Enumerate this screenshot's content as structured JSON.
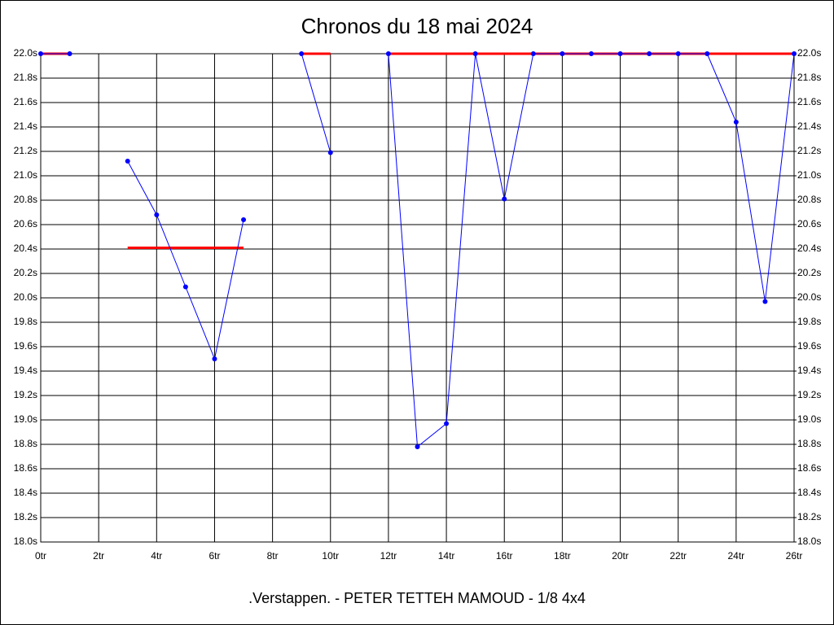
{
  "chart_data": {
    "type": "line",
    "title": "Chronos du 18 mai 2024",
    "subtitle": ".Verstappen. - PETER TETTEH MAMOUD - 1/8 4x4",
    "x": [
      0,
      1,
      2,
      3,
      4,
      5,
      6,
      7,
      8,
      9,
      10,
      11,
      12,
      13,
      14,
      15,
      16,
      17,
      18,
      19,
      20,
      21,
      22,
      23,
      24,
      25,
      26
    ],
    "series": [
      {
        "color": "#ff0000",
        "markers": false,
        "width": 3,
        "values": [
          22.0,
          22.0,
          null,
          20.41,
          20.41,
          20.41,
          20.41,
          20.41,
          null,
          22.0,
          22.0,
          null,
          22.0,
          22.0,
          22.0,
          22.0,
          22.0,
          22.0,
          22.0,
          22.0,
          22.0,
          22.0,
          22.0,
          22.0,
          22.0,
          22.0,
          22.0
        ]
      },
      {
        "color": "#0000ff",
        "markers": true,
        "width": 1,
        "values": [
          22.0,
          22.0,
          null,
          21.12,
          20.68,
          20.09,
          19.5,
          20.64,
          null,
          22.0,
          21.19,
          null,
          22.0,
          18.78,
          18.97,
          22.0,
          20.81,
          22.0,
          22.0,
          22.0,
          22.0,
          22.0,
          22.0,
          22.0,
          21.44,
          19.97,
          22.0
        ]
      }
    ],
    "xlim": [
      0,
      26
    ],
    "xticks": [
      {
        "value": 0,
        "label": "0tr"
      },
      {
        "value": 2,
        "label": "2tr"
      },
      {
        "value": 4,
        "label": "4tr"
      },
      {
        "value": 6,
        "label": "6tr"
      },
      {
        "value": 8,
        "label": "8tr"
      },
      {
        "value": 10,
        "label": "10tr"
      },
      {
        "value": 12,
        "label": "12tr"
      },
      {
        "value": 14,
        "label": "14tr"
      },
      {
        "value": 16,
        "label": "16tr"
      },
      {
        "value": 18,
        "label": "18tr"
      },
      {
        "value": 20,
        "label": "20tr"
      },
      {
        "value": 22,
        "label": "22tr"
      },
      {
        "value": 24,
        "label": "24tr"
      },
      {
        "value": 26,
        "label": "26tr"
      }
    ],
    "ylim": [
      18.0,
      22.0
    ],
    "yticks": [
      {
        "value": 18.0,
        "label": "18.0s"
      },
      {
        "value": 18.2,
        "label": "18.2s"
      },
      {
        "value": 18.4,
        "label": "18.4s"
      },
      {
        "value": 18.6,
        "label": "18.6s"
      },
      {
        "value": 18.8,
        "label": "18.8s"
      },
      {
        "value": 19.0,
        "label": "19.0s"
      },
      {
        "value": 19.2,
        "label": "19.2s"
      },
      {
        "value": 19.4,
        "label": "19.4s"
      },
      {
        "value": 19.6,
        "label": "19.6s"
      },
      {
        "value": 19.8,
        "label": "19.8s"
      },
      {
        "value": 20.0,
        "label": "20.0s"
      },
      {
        "value": 20.2,
        "label": "20.2s"
      },
      {
        "value": 20.4,
        "label": "20.4s"
      },
      {
        "value": 20.6,
        "label": "20.6s"
      },
      {
        "value": 20.8,
        "label": "20.8s"
      },
      {
        "value": 21.0,
        "label": "21.0s"
      },
      {
        "value": 21.2,
        "label": "21.2s"
      },
      {
        "value": 21.4,
        "label": "21.4s"
      },
      {
        "value": 21.6,
        "label": "21.6s"
      },
      {
        "value": 21.8,
        "label": "21.8s"
      },
      {
        "value": 22.0,
        "label": "22.0s"
      }
    ],
    "y2lim": [
      18.0,
      22.0
    ],
    "y2ticks": [
      {
        "value": 18.0,
        "label": "18.0s"
      },
      {
        "value": 18.2,
        "label": "18.2s"
      },
      {
        "value": 18.4,
        "label": "18.4s"
      },
      {
        "value": 18.6,
        "label": "18.6s"
      },
      {
        "value": 18.8,
        "label": "18.8s"
      },
      {
        "value": 19.0,
        "label": "19.0s"
      },
      {
        "value": 19.2,
        "label": "19.2s"
      },
      {
        "value": 19.4,
        "label": "19.4s"
      },
      {
        "value": 19.6,
        "label": "19.6s"
      },
      {
        "value": 19.8,
        "label": "19.8s"
      },
      {
        "value": 20.0,
        "label": "20.0s"
      },
      {
        "value": 20.2,
        "label": "20.2s"
      },
      {
        "value": 20.4,
        "label": "20.4s"
      },
      {
        "value": 20.6,
        "label": "20.6s"
      },
      {
        "value": 20.8,
        "label": "20.8s"
      },
      {
        "value": 21.0,
        "label": "21.0s"
      },
      {
        "value": 21.2,
        "label": "21.2s"
      },
      {
        "value": 21.4,
        "label": "21.4s"
      },
      {
        "value": 21.6,
        "label": "21.6s"
      },
      {
        "value": 21.8,
        "label": "21.8s"
      },
      {
        "value": 22.0,
        "label": "22.0s"
      }
    ],
    "grid": true
  }
}
